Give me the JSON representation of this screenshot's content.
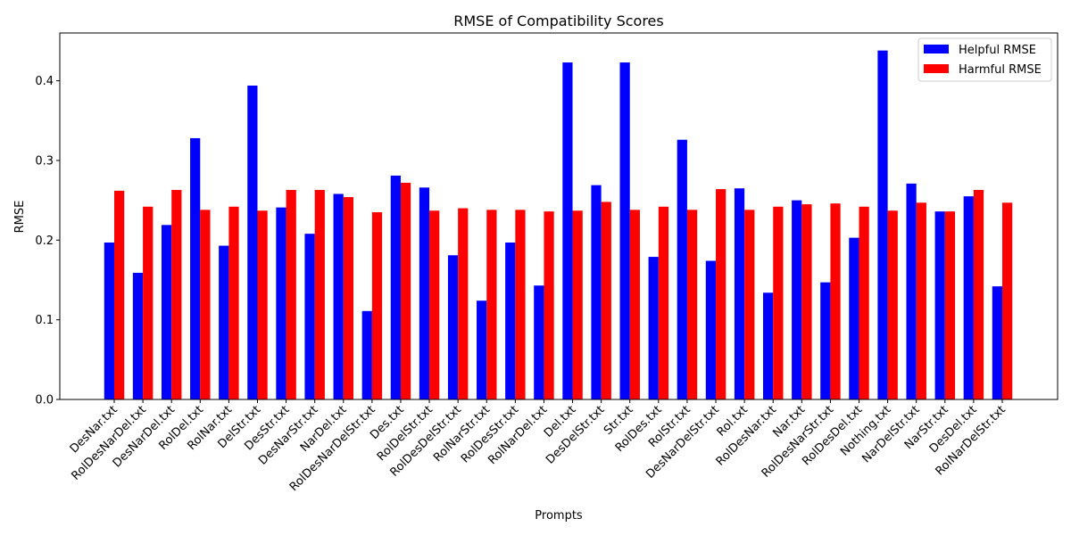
{
  "chart_data": {
    "type": "bar",
    "title": "RMSE of Compatibility Scores",
    "xlabel": "Prompts",
    "ylabel": "RMSE",
    "ylim": [
      0,
      0.46
    ],
    "yticks": [
      "0.0",
      "0.1",
      "0.2",
      "0.3",
      "0.4"
    ],
    "legend_position": "top-right",
    "grid": false,
    "categories": [
      "DesNar.txt",
      "RolDesNarDel.txt",
      "DesNarDel.txt",
      "RolDel.txt",
      "RolNar.txt",
      "DelStr.txt",
      "DesStr.txt",
      "DesNarStr.txt",
      "NarDel.txt",
      "RolDesNarDelStr.txt",
      "Des.txt",
      "RolDelStr.txt",
      "RolDesDelStr.txt",
      "RolNarStr.txt",
      "RolDesStr.txt",
      "RolNarDel.txt",
      "Del.txt",
      "DesDelStr.txt",
      "Str.txt",
      "RolDes.txt",
      "RolStr.txt",
      "DesNarDelStr.txt",
      "Rol.txt",
      "RolDesNar.txt",
      "Nar.txt",
      "RolDesNarStr.txt",
      "RolDesDel.txt",
      "Nothing.txt",
      "NarDelStr.txt",
      "NarStr.txt",
      "DesDel.txt",
      "RolNarDelStr.txt"
    ],
    "series": [
      {
        "name": "Helpful RMSE",
        "color": "#0000ff",
        "values": [
          0.197,
          0.159,
          0.219,
          0.328,
          0.193,
          0.394,
          0.241,
          0.208,
          0.258,
          0.111,
          0.281,
          0.266,
          0.181,
          0.124,
          0.197,
          0.143,
          0.423,
          0.269,
          0.423,
          0.179,
          0.326,
          0.174,
          0.265,
          0.134,
          0.25,
          0.147,
          0.203,
          0.438,
          0.271,
          0.236,
          0.255,
          0.142
        ]
      },
      {
        "name": "Harmful RMSE",
        "color": "#ff0000",
        "values": [
          0.262,
          0.242,
          0.263,
          0.238,
          0.242,
          0.237,
          0.263,
          0.263,
          0.254,
          0.235,
          0.272,
          0.237,
          0.24,
          0.238,
          0.238,
          0.236,
          0.237,
          0.248,
          0.238,
          0.242,
          0.238,
          0.264,
          0.238,
          0.242,
          0.245,
          0.246,
          0.242,
          0.237,
          0.247,
          0.236,
          0.263,
          0.247
        ]
      }
    ]
  }
}
